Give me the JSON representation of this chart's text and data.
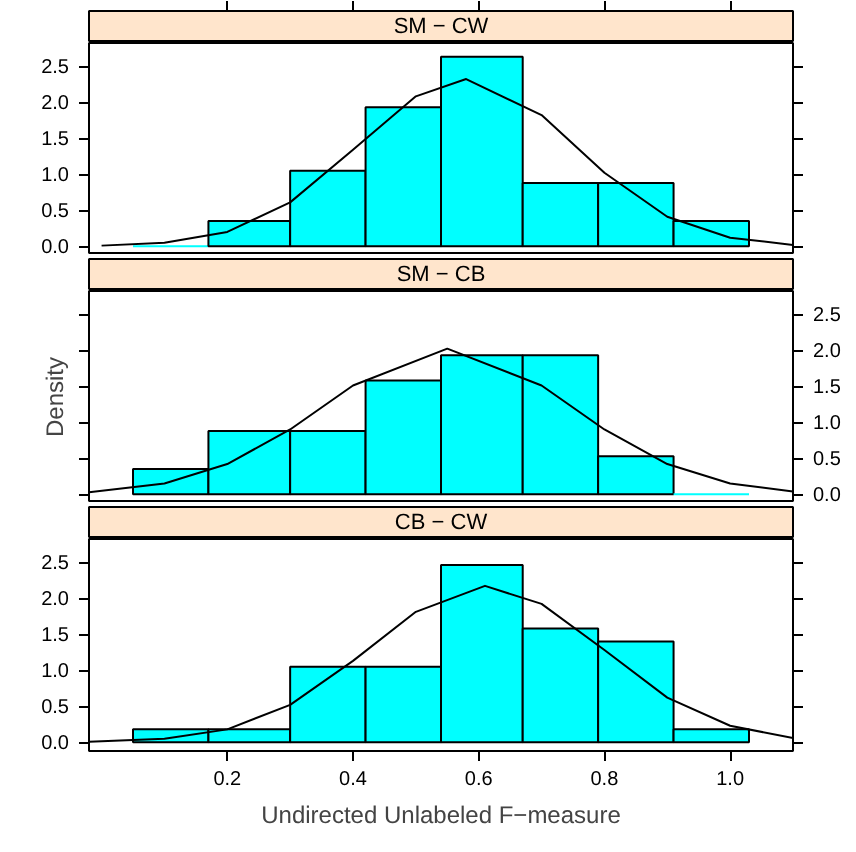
{
  "chart_data": [
    {
      "type": "histogram",
      "title": "SM − CW",
      "bins": [
        0.05,
        0.17,
        0.3,
        0.42,
        0.54,
        0.67,
        0.79,
        0.91,
        1.03
      ],
      "values": [
        0,
        0.35,
        1.05,
        1.93,
        2.63,
        0.88,
        0.88,
        0.35
      ],
      "color": "#00ffff",
      "xlim": [
        -0.02,
        1.1
      ],
      "ylim": [
        -0.12,
        2.82
      ],
      "xticks": [
        0.2,
        0.4,
        0.6,
        0.8,
        1.0
      ],
      "yticks": [
        {
          "value": 0,
          "label": "0.0"
        },
        0.5,
        {
          "value": 1,
          "label": "1.0"
        },
        1.5,
        {
          "value": 2,
          "label": "2.0"
        },
        2.5
      ],
      "tick_labels": "y",
      "series": [
        {
          "type": "line",
          "color": "#000000",
          "x": [
            0.0,
            0.1,
            0.2,
            0.3,
            0.4,
            0.5,
            0.58,
            0.7,
            0.8,
            0.9,
            1.0,
            1.1
          ],
          "values": [
            0.01,
            0.05,
            0.2,
            0.61,
            1.34,
            2.08,
            2.32,
            1.82,
            1.02,
            0.41,
            0.12,
            0.02
          ]
        }
      ]
    },
    {
      "type": "histogram",
      "title": "SM − CB",
      "ylabel": "Density",
      "bins": [
        0.05,
        0.17,
        0.3,
        0.42,
        0.54,
        0.67,
        0.79,
        0.91,
        1.03
      ],
      "values": [
        0.35,
        0.88,
        0.88,
        1.58,
        1.93,
        1.93,
        0.53,
        0
      ],
      "color": "#00ffff",
      "xlim": [
        -0.02,
        1.1
      ],
      "ylim": [
        -0.12,
        2.82
      ],
      "xticks": [
        0.2,
        0.4,
        0.6,
        0.8,
        1.0
      ],
      "yticks": [
        {
          "value": 0,
          "label": "0.0"
        },
        0.5,
        {
          "value": 1,
          "label": "1.0"
        },
        1.5,
        {
          "value": 2,
          "label": "2.0"
        },
        2.5
      ],
      "tick_labels": "y",
      "series": [
        {
          "type": "line",
          "color": "#000000",
          "x": [
            -0.02,
            0.1,
            0.2,
            0.3,
            0.4,
            0.55,
            0.7,
            0.8,
            0.9,
            1.0,
            1.1
          ],
          "values": [
            0.03,
            0.15,
            0.42,
            0.9,
            1.51,
            2.02,
            1.51,
            0.9,
            0.42,
            0.15,
            0.04
          ]
        }
      ]
    },
    {
      "type": "histogram",
      "title": "CB − CW",
      "xlabel": "Undirected Unlabeled F−measure",
      "bins": [
        0.05,
        0.17,
        0.3,
        0.42,
        0.54,
        0.67,
        0.79,
        0.91,
        1.03
      ],
      "values": [
        0.18,
        0.18,
        1.05,
        1.05,
        2.46,
        1.58,
        1.4,
        0.18
      ],
      "color": "#00ffff",
      "xlim": [
        -0.02,
        1.1
      ],
      "ylim": [
        -0.12,
        2.82
      ],
      "xticks": [
        0.2,
        0.4,
        0.6,
        0.8,
        {
          "value": 1,
          "label": "1.0"
        }
      ],
      "yticks": [
        {
          "value": 0,
          "label": "0.0"
        },
        0.5,
        {
          "value": 1,
          "label": "1.0"
        },
        1.5,
        {
          "value": 2,
          "label": "2.0"
        },
        2.5
      ],
      "series": [
        {
          "type": "line",
          "color": "#000000",
          "x": [
            -0.02,
            0.1,
            0.2,
            0.3,
            0.4,
            0.5,
            0.61,
            0.7,
            0.8,
            0.9,
            1.0,
            1.1
          ],
          "values": [
            0.01,
            0.05,
            0.18,
            0.52,
            1.13,
            1.81,
            2.17,
            1.92,
            1.28,
            0.62,
            0.23,
            0.06
          ]
        }
      ]
    }
  ]
}
